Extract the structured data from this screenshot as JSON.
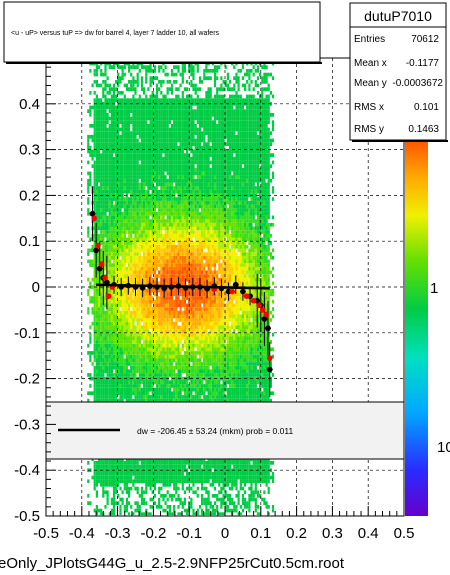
{
  "chart_data": {
    "type": "scatter",
    "title": "<u - uP>       versus  tuP =>  dw for barrel 4, layer 7 ladder 10, all wafers",
    "xlabel": "",
    "ylabel": "",
    "xlim": [
      -0.5,
      0.5
    ],
    "ylim": [
      -0.5,
      0.5
    ],
    "x_ticks": [
      "-0.5",
      "-0.4",
      "-0.3",
      "-0.2",
      "-0.1",
      "0",
      "0.1",
      "0.2",
      "0.3",
      "0.4",
      "0.5"
    ],
    "y_ticks": [
      "-0.5",
      "-0.4",
      "-0.3",
      "-0.2",
      "-0.1",
      "0",
      "0.1",
      "0.2",
      "0.3",
      "0.4"
    ],
    "grid": true,
    "colorbar_labels": [
      "1",
      "10"
    ],
    "black_profile": {
      "name": "profile",
      "points": [
        {
          "x": -0.37,
          "y": 0.16
        },
        {
          "x": -0.36,
          "y": 0.08
        },
        {
          "x": -0.35,
          "y": 0.04
        },
        {
          "x": -0.34,
          "y": 0.02
        },
        {
          "x": -0.33,
          "y": 0.01
        },
        {
          "x": -0.31,
          "y": 0.005
        },
        {
          "x": -0.29,
          "y": 0.0
        },
        {
          "x": -0.27,
          "y": 0.003
        },
        {
          "x": -0.25,
          "y": 0.0
        },
        {
          "x": -0.23,
          "y": -0.002
        },
        {
          "x": -0.21,
          "y": 0.002
        },
        {
          "x": -0.19,
          "y": 0.0
        },
        {
          "x": -0.17,
          "y": -0.003
        },
        {
          "x": -0.15,
          "y": 0.0
        },
        {
          "x": -0.13,
          "y": 0.002
        },
        {
          "x": -0.11,
          "y": -0.002
        },
        {
          "x": -0.09,
          "y": 0.0
        },
        {
          "x": -0.07,
          "y": 0.0
        },
        {
          "x": -0.05,
          "y": -0.004
        },
        {
          "x": -0.03,
          "y": 0.002
        },
        {
          "x": -0.01,
          "y": -0.003
        },
        {
          "x": 0.01,
          "y": -0.01
        },
        {
          "x": 0.03,
          "y": 0.005
        },
        {
          "x": 0.05,
          "y": -0.01
        },
        {
          "x": 0.07,
          "y": -0.02
        },
        {
          "x": 0.09,
          "y": -0.03
        },
        {
          "x": 0.1,
          "y": -0.04
        },
        {
          "x": 0.11,
          "y": -0.07
        },
        {
          "x": 0.12,
          "y": -0.09
        },
        {
          "x": 0.125,
          "y": -0.18
        }
      ]
    },
    "red_profile": {
      "name": "profile-red",
      "points": [
        {
          "x": -0.365,
          "y": 0.15
        },
        {
          "x": -0.355,
          "y": 0.09
        },
        {
          "x": -0.345,
          "y": 0.05
        },
        {
          "x": -0.335,
          "y": 0.02
        },
        {
          "x": -0.325,
          "y": -0.02
        },
        {
          "x": -0.315,
          "y": 0.0
        },
        {
          "x": -0.03,
          "y": -0.005
        },
        {
          "x": 0.02,
          "y": -0.01
        },
        {
          "x": 0.06,
          "y": -0.02
        },
        {
          "x": 0.08,
          "y": -0.03
        },
        {
          "x": 0.095,
          "y": -0.04
        },
        {
          "x": 0.105,
          "y": -0.05
        },
        {
          "x": 0.115,
          "y": -0.06
        },
        {
          "x": 0.125,
          "y": -0.155
        }
      ]
    },
    "fit_line": {
      "x": [
        -0.36,
        0.125
      ],
      "y": [
        0.005,
        -0.003
      ]
    },
    "legend_text": "dw = -206.45 ± 53.24 (mkm) prob = 0.011",
    "stats": {
      "title": "dutuP7010",
      "rows": [
        {
          "label": "Entries",
          "value": "70612"
        },
        {
          "label": "Mean x",
          "value": "-0.1177"
        },
        {
          "label": "Mean y",
          "value": "-0.0003672"
        },
        {
          "label": "RMS x",
          "value": "0.101"
        },
        {
          "label": "RMS y",
          "value": "0.1463"
        }
      ]
    }
  },
  "footer": "eOnly_JPlotsG44G_u_2.5-2.9NFP25rCut0.5cm.root"
}
